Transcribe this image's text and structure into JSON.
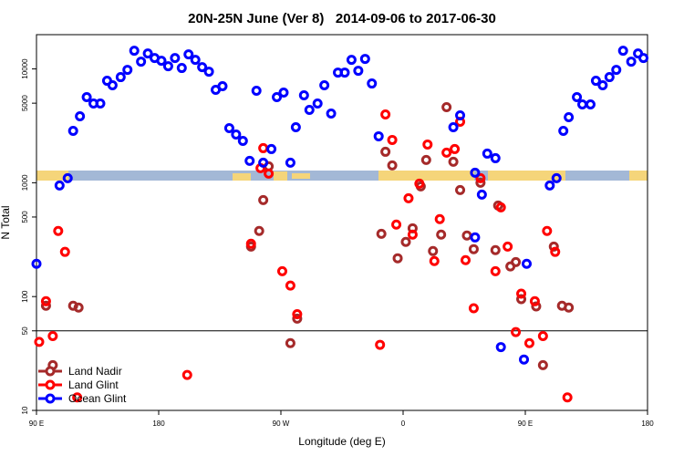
{
  "chart_data": {
    "type": "scatter",
    "title": "20N-25N June (Ver 8)   2014-09-06 to 2017-06-30",
    "x_label": "Longitude (deg E)",
    "y_label": "N Total",
    "log_y": true,
    "xlim": [
      90,
      540
    ],
    "ylim": [
      10,
      20000
    ],
    "xticks": [
      {
        "value": 90,
        "label": "90 E"
      },
      180,
      {
        "value": 270,
        "label": "90 W"
      },
      {
        "value": 360,
        "label": "0"
      },
      {
        "value": 450,
        "label": "90 E"
      },
      {
        "value": 540,
        "label": "180"
      }
    ],
    "yticks": [
      10,
      50,
      100,
      500,
      1000,
      5000,
      10000
    ],
    "hline": 50,
    "legend": "bottom-left",
    "series": [
      {
        "name": "Land Nadir",
        "color": "#a52a2a",
        "x": [
          97,
          102,
          117,
          121,
          248,
          254,
          257,
          261,
          277,
          282,
          344,
          347,
          352,
          356,
          362,
          367,
          373,
          377,
          382,
          388,
          392,
          397,
          402,
          407,
          412,
          417,
          428,
          430,
          439,
          443,
          447,
          458,
          463,
          471,
          477,
          482
        ],
        "values": [
          83,
          25,
          83,
          80,
          275,
          377,
          705,
          1393,
          39,
          64,
          356,
          1871,
          1419,
          217,
          302,
          398,
          929,
          1585,
          251,
          350,
          4613,
          1528,
          863,
          344,
          261,
          1000,
          256,
          631,
          184,
          201,
          95,
          82,
          25,
          275,
          83,
          80
        ]
      },
      {
        "name": "Land Glint",
        "color": "#ff0000",
        "x": [
          92,
          97,
          102,
          106,
          111,
          120,
          201,
          248,
          255,
          257,
          261,
          271,
          277,
          282,
          343,
          347,
          352,
          355,
          364,
          367,
          372,
          378,
          383,
          387,
          392,
          398,
          402,
          406,
          412,
          417,
          428,
          432,
          437,
          443,
          447,
          453,
          457,
          463,
          466,
          472,
          481
        ],
        "values": [
          40,
          91,
          45,
          377,
          247,
          13,
          20.5,
          291,
          1343,
          2014,
          1202,
          167,
          125,
          70,
          37.7,
          3981,
          2377,
          429,
          731,
          350,
          982,
          2168,
          205,
          479,
          1837,
          1977,
          3436,
          209,
          79,
          1096,
          167,
          608,
          275,
          48.8,
          106,
          39,
          91,
          45,
          377,
          247,
          13
        ]
      },
      {
        "name": "Ocean Glint",
        "color": "#0000ff",
        "x": [
          90,
          107,
          113,
          117,
          122,
          127,
          132,
          137,
          142,
          146,
          152,
          157,
          162,
          167,
          172,
          177,
          182,
          187,
          192,
          197,
          202,
          207,
          212,
          217,
          222,
          227,
          232,
          237,
          242,
          247,
          252,
          257,
          263,
          267,
          272,
          277,
          281,
          287,
          291,
          297,
          302,
          307,
          312,
          317,
          322,
          327,
          332,
          337,
          342,
          397,
          402,
          413,
          418,
          422,
          428,
          432,
          413,
          449,
          451,
          468,
          473,
          478,
          482,
          488,
          492,
          498,
          502,
          507,
          512,
          517,
          522,
          528,
          533,
          537
        ],
        "values": [
          194,
          946,
          1096,
          2858,
          3837,
          5650,
          4966,
          4966,
          7870,
          7178,
          8472,
          9817,
          14450,
          11590,
          13680,
          12470,
          11800,
          10570,
          12470,
          10190,
          13430,
          12020,
          10370,
          9462,
          6546,
          7047,
          3020,
          2655,
          2333,
          1556,
          6427,
          1500,
          1977,
          5650,
          6194,
          1500,
          3076,
          5861,
          4365,
          4966,
          7178,
          4055,
          9290,
          9290,
          12020,
          9638,
          12250,
          7447,
          2559,
          3076,
          3908,
          1225,
          787,
          1803,
          1644,
          36,
          331,
          28,
          194,
          946,
          1096,
          2858,
          3767,
          5650,
          4875,
          4875,
          7870,
          7178,
          8472,
          9817,
          14450,
          11590,
          13680,
          12470
        ]
      }
    ]
  }
}
